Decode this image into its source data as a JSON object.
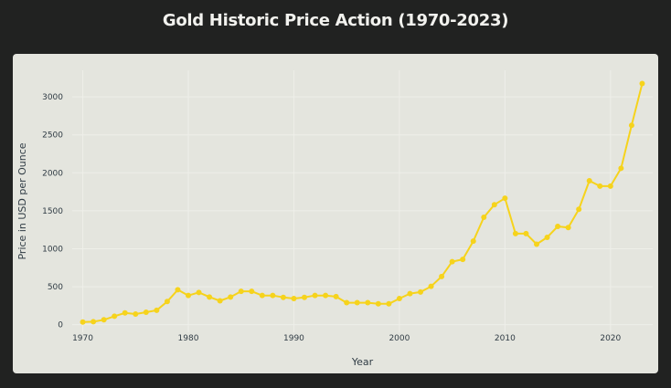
{
  "chart_data": {
    "type": "line",
    "title": "Gold Historic Price Action (1970-2023)",
    "xlabel": "Year",
    "ylabel": "Price in USD per Ounce",
    "xlim": [
      1969,
      2024
    ],
    "ylim": [
      -100,
      3350
    ],
    "xticks": [
      1970,
      1980,
      1990,
      2000,
      2010,
      2020
    ],
    "yticks": [
      0,
      500,
      1000,
      1500,
      2000,
      2500,
      3000
    ],
    "grid": true,
    "series": [
      {
        "color": "#f6d31c",
        "x": [
          1970,
          1971,
          1972,
          1973,
          1974,
          1975,
          1976,
          1977,
          1978,
          1979,
          1980,
          1981,
          1982,
          1983,
          1984,
          1985,
          1986,
          1987,
          1988,
          1989,
          1990,
          1991,
          1992,
          1993,
          1994,
          1995,
          1996,
          1997,
          1998,
          1999,
          2000,
          2001,
          2002,
          2003,
          2004,
          2005,
          2006,
          2007,
          2008,
          2009,
          2010,
          2011,
          2012,
          2013,
          2014,
          2015,
          2016,
          2017,
          2018,
          2019,
          2020,
          2021,
          2022,
          2023
        ],
        "y": [
          35,
          40,
          65,
          112,
          155,
          140,
          165,
          190,
          305,
          460,
          385,
          425,
          365,
          315,
          365,
          440,
          440,
          385,
          385,
          360,
          345,
          360,
          385,
          385,
          370,
          290,
          290,
          290,
          275,
          275,
          345,
          410,
          430,
          505,
          635,
          830,
          860,
          1100,
          1415,
          1580,
          1665,
          1200,
          1200,
          1060,
          1150,
          1295,
          1280,
          1520,
          1895,
          1825,
          1825,
          2060,
          2625,
          3175
        ]
      }
    ]
  }
}
